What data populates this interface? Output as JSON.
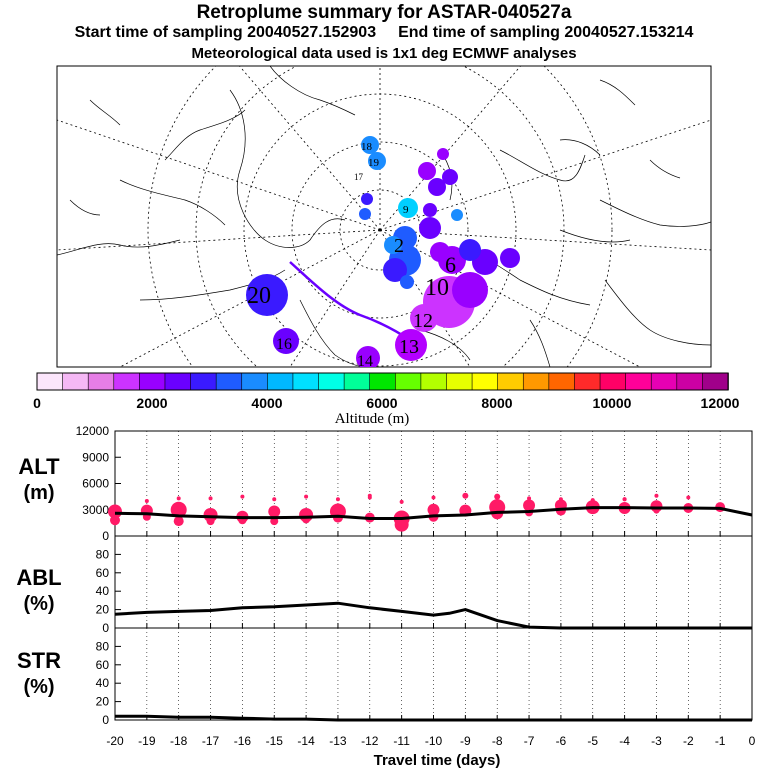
{
  "header": {
    "title": "Retroplume summary for ASTAR-040527a",
    "start_label": "Start time of sampling 20040527.152903",
    "end_label": "End time of sampling 20040527.153214",
    "met_label": "Meteorological data used is 1x1 deg ECMWF analyses"
  },
  "colorbar": {
    "label": "Altitude (m)",
    "tick_labels": [
      "0",
      "2000",
      "4000",
      "6000",
      "8000",
      "10000",
      "12000"
    ],
    "colors": [
      "#fce6fc",
      "#f5b8f5",
      "#e67ee6",
      "#cc33ff",
      "#9900ff",
      "#6a00ff",
      "#3a1aff",
      "#1f5cff",
      "#1a8cff",
      "#00b8ff",
      "#00e0ff",
      "#00ffe6",
      "#00ff99",
      "#00e600",
      "#66ff00",
      "#b3ff00",
      "#e6ff00",
      "#ffff00",
      "#ffcc00",
      "#ff9900",
      "#ff6600",
      "#ff2a2a",
      "#ff0066",
      "#ff0099",
      "#e600b3",
      "#cc00a3",
      "#a0008a"
    ]
  },
  "map": {
    "labels": [
      {
        "text": "20",
        "color": "#3a1aff"
      },
      {
        "text": "16",
        "color": "#6a00ff"
      },
      {
        "text": "14",
        "color": "#9900ff"
      },
      {
        "text": "10",
        "color": "#cc33ff"
      },
      {
        "text": "12",
        "color": "#cc33ff"
      },
      {
        "text": "13",
        "color": "#b300ff"
      },
      {
        "text": "9",
        "color": "#00b8ff"
      },
      {
        "text": "6",
        "color": "#3a1aff"
      },
      {
        "text": "2",
        "color": "#1f5cff"
      },
      {
        "text": "19",
        "color": "#1a8cff"
      },
      {
        "text": "18",
        "color": "#1a8cff"
      },
      {
        "text": "17",
        "color": "#00b8ff"
      }
    ]
  },
  "chart_data": [
    {
      "type": "scatter",
      "panel": "ALT",
      "ylabel": "ALT",
      "yunit": "(m)",
      "ylim": [
        0,
        12000
      ],
      "yticks": [
        "0",
        "3000",
        "6000",
        "9000",
        "12000"
      ],
      "xlim": [
        -20,
        0
      ],
      "series": [
        {
          "name": "median altitude",
          "x": [
            -20,
            -19,
            -18,
            -17,
            -16,
            -15,
            -14,
            -13,
            -12,
            -11,
            -10,
            -9,
            -8,
            -7,
            -6,
            -5,
            -4,
            -3,
            -2,
            -1,
            0
          ],
          "y": [
            2600,
            2550,
            2300,
            2200,
            2100,
            2100,
            2150,
            2250,
            2000,
            2000,
            2300,
            2400,
            2700,
            2800,
            3050,
            3250,
            3250,
            3200,
            3200,
            3150,
            2400
          ]
        },
        {
          "name": "cluster centers",
          "x": [
            -20,
            -20,
            -19,
            -19,
            -18,
            -18,
            -17,
            -17,
            -16,
            -16,
            -15,
            -15,
            -14,
            -14,
            -13,
            -13,
            -12,
            -12,
            -11,
            -11,
            -10,
            -10,
            -9,
            -9,
            -8,
            -8,
            -7,
            -7,
            -6,
            -6,
            -5,
            -5,
            -4,
            -4,
            -3,
            -3,
            -2,
            -2,
            -1,
            -1
          ],
          "y": [
            2800,
            1800,
            2900,
            2200,
            3000,
            1700,
            2400,
            1700,
            2200,
            1800,
            2800,
            1700,
            2400,
            1900,
            2800,
            2100,
            2100,
            4600,
            2000,
            1300,
            3000,
            2200,
            2900,
            4600,
            3300,
            2600,
            3500,
            2700,
            3500,
            2900,
            3300,
            3100,
            3200,
            4200,
            3400,
            2900,
            3200,
            3000,
            3300,
            3100
          ],
          "size": [
            7,
            5,
            6,
            4,
            8,
            5,
            7,
            4,
            6,
            4,
            6,
            4,
            7,
            4,
            8,
            5,
            5,
            2,
            8,
            7,
            6,
            5,
            6,
            3,
            8,
            6,
            6,
            4,
            6,
            5,
            7,
            5,
            6,
            2,
            6,
            3,
            5,
            3,
            5,
            3
          ]
        },
        {
          "name": "small markers",
          "x": [
            -19,
            -18,
            -17,
            -16,
            -15,
            -14,
            -13,
            -12,
            -11,
            -10,
            -9,
            -8,
            -7,
            -6,
            -5,
            -4,
            -3,
            -2
          ],
          "y": [
            4000,
            4300,
            4300,
            4500,
            4200,
            4500,
            4200,
            4400,
            3900,
            4400,
            4600,
            4500,
            4300,
            4200,
            4100,
            4200,
            4600,
            4400
          ],
          "size": [
            2,
            2,
            2,
            2,
            2,
            2,
            2,
            2,
            2,
            2,
            2,
            3,
            2,
            2,
            2,
            2,
            2,
            2
          ]
        }
      ]
    },
    {
      "type": "line",
      "panel": "ABL",
      "ylabel": "ABL",
      "yunit": "(%)",
      "ylim": [
        0,
        100
      ],
      "yticks": [
        "0",
        "20",
        "40",
        "60",
        "80"
      ],
      "xlim": [
        -20,
        0
      ],
      "x": [
        -20,
        -19,
        -18,
        -17,
        -16,
        -15,
        -14,
        -13,
        -12,
        -11,
        -10,
        -9.5,
        -9,
        -8,
        -7,
        -6,
        -5,
        -4,
        -3,
        -2,
        -1,
        0
      ],
      "y": [
        15,
        17,
        18,
        19,
        22,
        23,
        25,
        27,
        22,
        18,
        14,
        16,
        20,
        8,
        1,
        0,
        0,
        0,
        0,
        0,
        0,
        0
      ]
    },
    {
      "type": "line",
      "panel": "STR",
      "ylabel": "STR",
      "yunit": "(%)",
      "ylim": [
        0,
        100
      ],
      "yticks": [
        "0",
        "20",
        "40",
        "60",
        "80"
      ],
      "xlim": [
        -20,
        0
      ],
      "xlabel": "Travel time (days)",
      "xtick_labels": [
        "-20",
        "-19",
        "-18",
        "-17",
        "-16",
        "-15",
        "-14",
        "-13",
        "-12",
        "-11",
        "-10",
        "-9",
        "-8",
        "-7",
        "-6",
        "-5",
        "-4",
        "-3",
        "-2",
        "-1",
        "0"
      ],
      "x": [
        -20,
        -19,
        -18,
        -17,
        -16,
        -15,
        -14,
        -13,
        -12,
        -11,
        -10,
        -9,
        -8,
        -7,
        -6,
        -5,
        -4,
        -3,
        -2,
        -1,
        0
      ],
      "y": [
        4,
        4,
        3,
        3,
        2,
        1,
        1,
        0,
        0,
        0,
        0,
        0,
        0,
        0,
        0,
        0,
        0,
        0,
        0,
        0,
        0
      ]
    }
  ],
  "style": {
    "marker_color": "#ff1a66",
    "line_color": "#000000"
  }
}
